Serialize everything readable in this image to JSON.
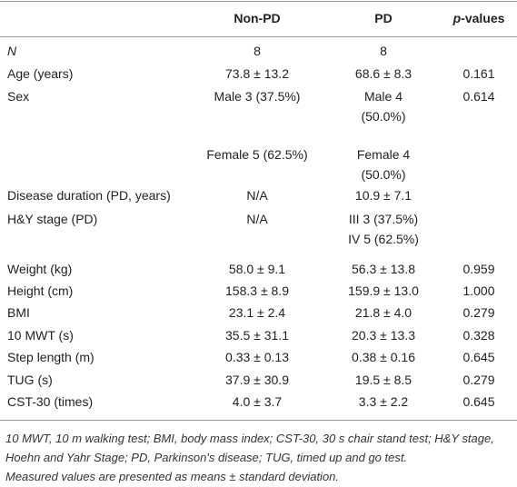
{
  "header": {
    "columns": [
      "Non-PD",
      "PD",
      "p-values"
    ]
  },
  "table": {
    "rows": [
      [
        "N",
        "8",
        "8",
        null
      ],
      [
        "Age (years)",
        "73.8 ± 13.2",
        "68.6 ± 8.3",
        "0.161"
      ],
      [
        "Sex",
        "Male 3 (37.5%)",
        "Male 4 (50.0%)",
        "0.614"
      ],
      [
        null,
        "Female 5 (62.5%)",
        "Female 4 (50.0%)",
        null
      ],
      [
        "Disease duration (PD, years)",
        "N/A",
        "10.9 ± 7.1",
        null
      ],
      [
        "H&Y stage (PD)",
        "N/A",
        "III 3 (37.5%) IV 5 (62.5%)",
        null
      ],
      [
        "Weight (kg)",
        "58.0 ± 9.1",
        "56.3 ± 13.8",
        "0.959"
      ],
      [
        "Height (cm)",
        "158.3 ± 8.9",
        "159.9 ± 13.0",
        "1.000"
      ],
      [
        "BMI",
        "23.1 ± 2.4",
        "21.8 ± 4.0",
        "0.279"
      ],
      [
        "10 MWT (s)",
        "35.5 ± 31.1",
        "20.3 ± 13.3",
        "0.328"
      ],
      [
        "Step length (m)",
        "0.33 ± 0.13",
        "0.38 ± 0.16",
        "0.645"
      ],
      [
        "TUG (s)",
        "37.9 ± 30.9",
        "19.5 ± 8.5",
        "0.279"
      ],
      [
        "CST-30 (times)",
        "4.0 ± 3.7",
        "3.3 ± 2.2",
        "0.645"
      ]
    ]
  },
  "footnote": [
    "10 MWT, 10 m walking test; BMI, body mass index; CST-30, 30 s chair stand test; H&Y stage, Hoehn and Yahr Stage; PD, Parkinson's disease; TUG, timed up and go test.",
    "Measured values are presented as means ± standard deviation."
  ]
}
